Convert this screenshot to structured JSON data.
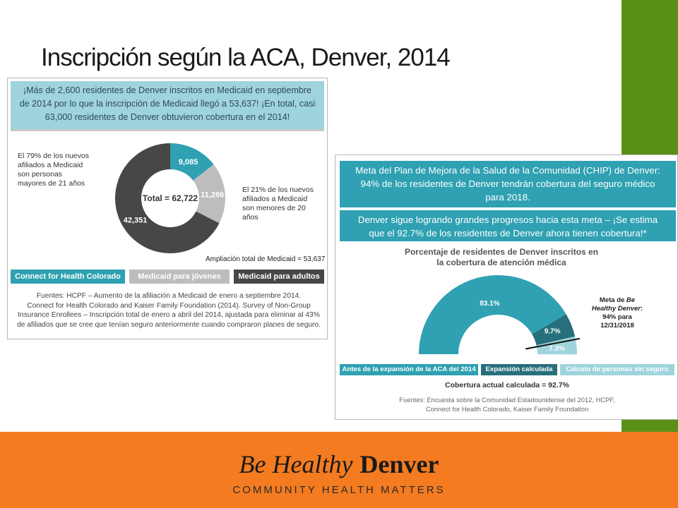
{
  "title": "Inscripción según la ACA, Denver, 2014",
  "left_panel": {
    "header": [
      "¡Más de 2,600 residentes de Denver inscritos en Medicaid en septiembre",
      "de 2014 por lo que la inscripción de Medicaid llegó a 53,637! ¡En total, casi",
      "63,000 residentes de Denver obtuvieron cobertura en el 2014!"
    ],
    "note_left": [
      "El 79% de los nuevos",
      "afiliados a Medicaid",
      "son personas",
      "mayores de 21 años"
    ],
    "note_right": [
      "El 21% de los nuevos",
      "afiliados a Medicaid",
      "son menores de 20",
      "años"
    ],
    "total_label": "Total = 62,722",
    "expansion_label": "Ampliación total de Medicaid = 53,637",
    "legend": [
      "Connect for Health Colorado",
      "Medicaid para jóvenes",
      "Medicaid para adultos"
    ],
    "sources": [
      "Fuentes: HCPF – Aumento de la afiliación a Medicaid de enero a septiembre 2014.",
      "Connect for Health Colorado and Kaiser Family Foundation (2014). Survey of Non-Group",
      "Insurance Enrollees – Inscripción total de enero a abril del 2014, ajustada para eliminar al 43%",
      "de afiliados que se cree que tenían seguro anteriormente cuando compraron planes de seguro."
    ]
  },
  "right_panel": {
    "box1": [
      "Meta del Plan de Mejora de la Salud de la Comunidad (CHIP) de Denver:",
      "94% de los residentes de Denver tendrán cobertura del seguro médico",
      "para 2018."
    ],
    "box2": [
      "Denver sigue logrando grandes progresos hacia esta meta – ¡Se estima",
      "que el 92.7% de los residentes de Denver ahora tienen cobertura!*"
    ],
    "chart_title": [
      "Porcentaje de residentes de Denver inscritos en",
      "la cobertura de atención médica"
    ],
    "meta_prefix": "Meta de ",
    "meta_italic": [
      "Be",
      "Healthy Denver"
    ],
    "meta_suffix": ":",
    "meta_lines": [
      "94% para",
      "12/31/2018"
    ],
    "legend": [
      "Antes de la expansión de la ACA del 2014",
      "Expansión calculada",
      "Cálculo de personas sin seguro"
    ],
    "coverage": "Cobertura actual calculada = 92.7%",
    "sources": [
      "Fuentes: Encuesta sobre la Comunidad Estadounidense del 2012, HCPF,",
      "Connect for Health Colorado, Kaiser Family Foundation"
    ]
  },
  "footer": {
    "brand_italic": "Be Healthy",
    "brand_bold": "Denver",
    "tagline": "COMMUNITY HEALTH MATTERS"
  },
  "colors": {
    "green": "#5b9018",
    "orange": "#f47b20",
    "teal": "#2fa1b2",
    "light_teal": "#9fd4dd",
    "gray": "#bdbdbd",
    "dark": "#474747"
  },
  "chart_data": [
    {
      "type": "pie",
      "title": "",
      "labels": [
        "Connect for Health Colorado",
        "Medicaid para jóvenes",
        "Medicaid para adultos"
      ],
      "values": [
        9085,
        11286,
        42351
      ],
      "total": 62722,
      "colors": [
        "#2fa1b2",
        "#bdbdbd",
        "#474747"
      ],
      "style": "donut"
    },
    {
      "type": "pie",
      "title": "Porcentaje de residentes de Denver inscritos en la cobertura de atención médica",
      "labels": [
        "Antes de la expansión de la ACA del 2014",
        "Expansión calculada",
        "Cálculo de personas sin seguro"
      ],
      "values": [
        83.1,
        9.7,
        7.3
      ],
      "value_labels": [
        "83.1%",
        "9.7%",
        "7.3%"
      ],
      "colors": [
        "#2fa1b2",
        "#276f7c",
        "#9fd4dd"
      ],
      "style": "half-donut",
      "target": 94
    }
  ]
}
